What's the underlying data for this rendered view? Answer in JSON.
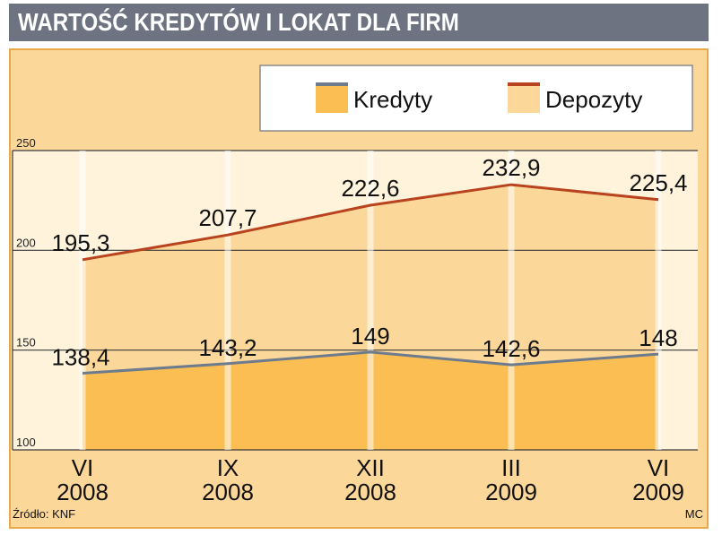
{
  "header": {
    "title": "WARTOŚĆ KREDYTÓW I LOKAT DLA FIRM"
  },
  "footer": {
    "source": "Źródło: KNF",
    "author": "MC"
  },
  "colors": {
    "kredyty_fill": "#fbbe53",
    "kredyty_line": "#6d7b8d",
    "depozyty_fill": "#fcd79a",
    "depozyty_line": "#b8431e",
    "plot_bg": "#fff3dc",
    "panel_bg": "#fcd79a"
  },
  "chart_data": {
    "type": "area",
    "categories": [
      [
        "VI",
        "2008"
      ],
      [
        "IX",
        "2008"
      ],
      [
        "XII",
        "2008"
      ],
      [
        "III",
        "2009"
      ],
      [
        "VI",
        "2009"
      ]
    ],
    "series": [
      {
        "name": "Kredyty",
        "values": [
          138.4,
          143.2,
          149,
          142.6,
          148
        ],
        "labels": [
          "138,4",
          "143,2",
          "149",
          "142,6",
          "148"
        ]
      },
      {
        "name": "Depozyty",
        "values": [
          195.3,
          207.7,
          222.6,
          232.9,
          225.4
        ],
        "labels": [
          "195,3",
          "207,7",
          "222,6",
          "232,9",
          "225,4"
        ]
      }
    ],
    "ylim": [
      100,
      250
    ],
    "yticks": [
      "100",
      "150",
      "200",
      "250"
    ],
    "grid": true,
    "legend": "top"
  }
}
